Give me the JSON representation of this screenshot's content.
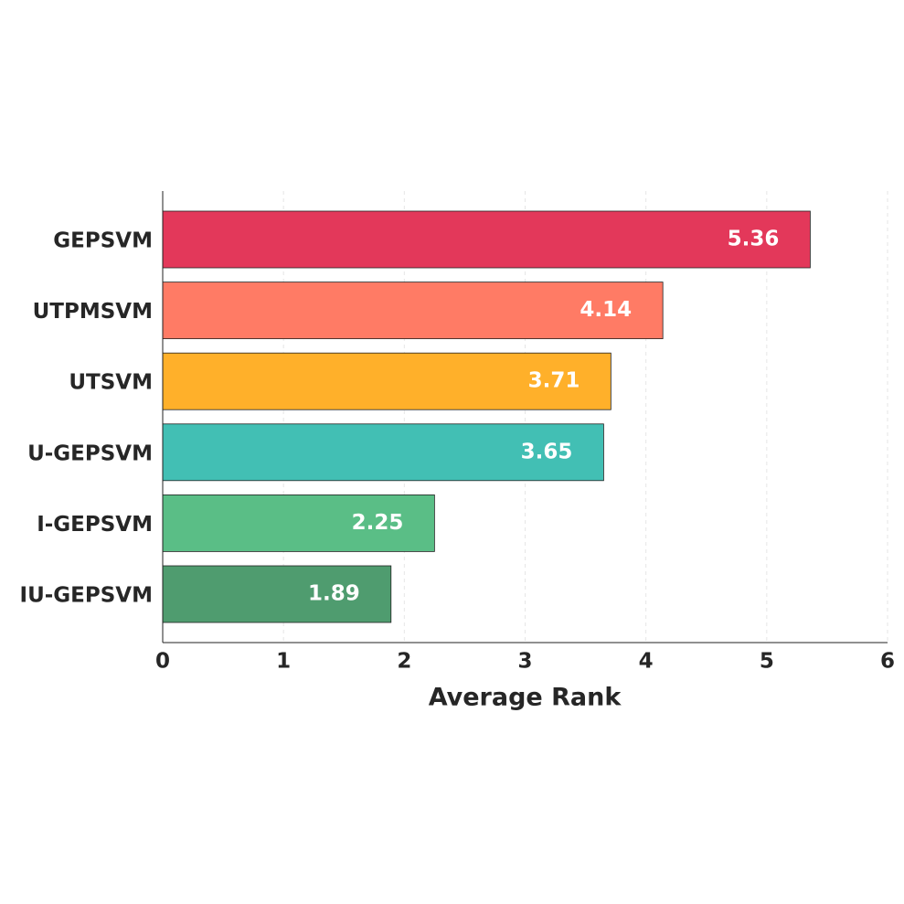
{
  "chart_data": {
    "type": "barh",
    "categories": [
      "GEPSVM",
      "UTPMSVM",
      "UTSVM",
      "U-GEPSVM",
      "I-GEPSVM",
      "IU-GEPSVM"
    ],
    "values": [
      5.36,
      4.14,
      3.71,
      3.65,
      2.25,
      1.89
    ],
    "colors": [
      "#e3385a",
      "#ff7b65",
      "#ffb02a",
      "#42bfb4",
      "#5abe86",
      "#4f9c6f"
    ],
    "xlabel": "Average Rank",
    "xlim": [
      0,
      6
    ],
    "xticks": [
      0,
      1,
      2,
      3,
      4,
      5,
      6
    ],
    "grid": true
  }
}
